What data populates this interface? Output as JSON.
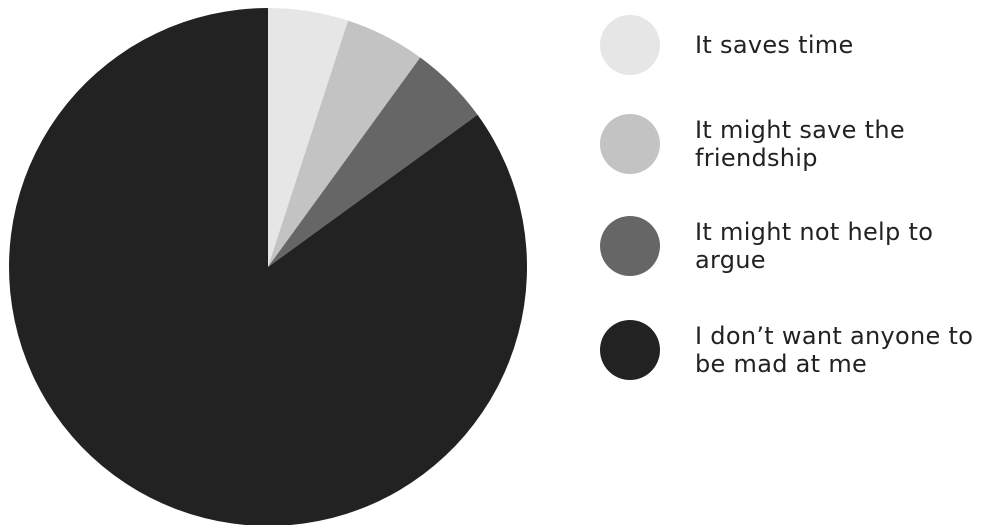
{
  "chart_data": {
    "type": "pie",
    "title": "",
    "slices": [
      {
        "label": "It saves time",
        "value": 5,
        "color": "#e6e6e6"
      },
      {
        "label": "It might save the friendship",
        "value": 5,
        "color": "#c3c3c3"
      },
      {
        "label": "It might not help to argue",
        "value": 5,
        "color": "#666666"
      },
      {
        "label": "I don’t want anyone to be mad at me",
        "value": 85,
        "color": "#222222"
      }
    ],
    "legend_position": "right"
  }
}
